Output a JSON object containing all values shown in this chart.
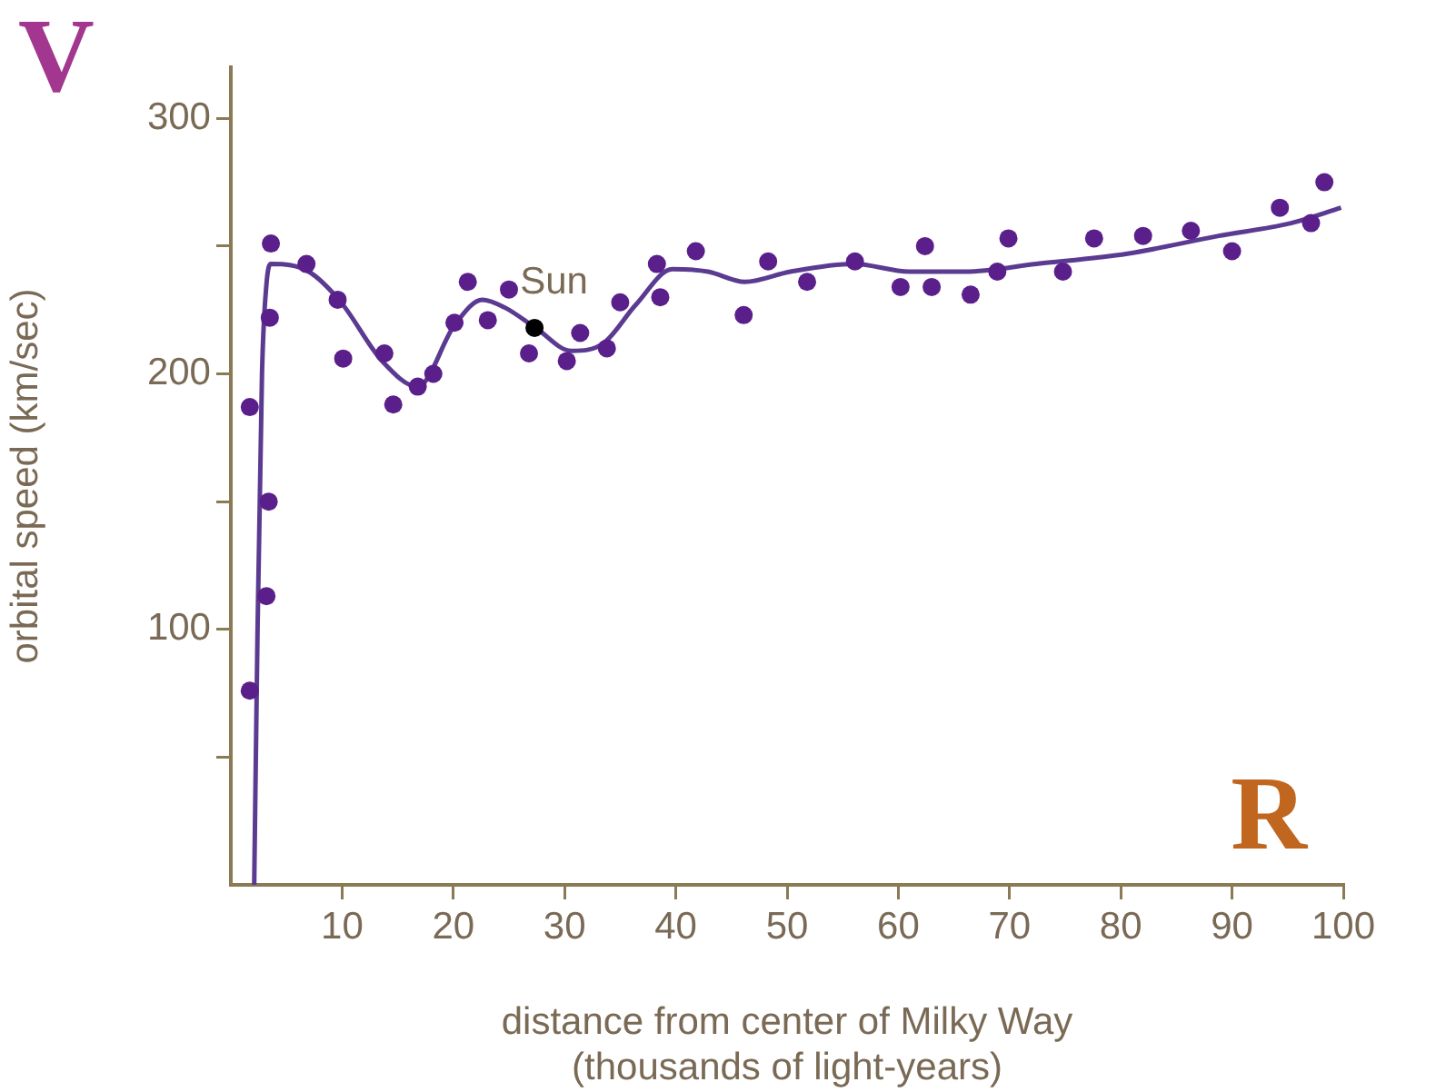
{
  "chart_data": {
    "type": "scatter",
    "xlabel": "distance from center of Milky Way\n(thousands of light-years)",
    "ylabel": "orbital speed (km/sec)",
    "xlim": [
      0,
      100
    ],
    "xticks": [
      10,
      20,
      30,
      40,
      50,
      60,
      70,
      80,
      90,
      100
    ],
    "ylim": [
      0,
      320
    ],
    "yticks": [
      {
        "value": 50,
        "label": null
      },
      100,
      {
        "value": 150,
        "label": null
      },
      200,
      {
        "value": 250,
        "label": null
      },
      300
    ],
    "grid": false,
    "legend": false,
    "marker": "circle",
    "annotations": [
      "V",
      "R"
    ],
    "series": [
      {
        "type": "line",
        "marker": "none",
        "color": "#5b3a91",
        "x": [
          2.1,
          2.4,
          2.8,
          3.2,
          3.6,
          7,
          9.9,
          13.6,
          16.8,
          20.1,
          22.6,
          24.6,
          27.4,
          30.6,
          33.5,
          36.4,
          39.7,
          42.9,
          46.2,
          50.3,
          56,
          61,
          66,
          72.4,
          80.6,
          88.8,
          95.3,
          99.8
        ],
        "values": [
          0,
          100,
          200,
          235,
          243,
          240,
          228,
          205,
          195,
          219,
          229,
          226,
          218,
          209,
          212,
          227,
          241,
          240,
          236,
          240,
          243,
          240,
          240,
          243,
          247,
          254,
          259,
          265
        ]
      },
      {
        "color": "#5a1f8a",
        "x": [
          1.7,
          1.7,
          3.2,
          3.4,
          3.5,
          3.6,
          6.8,
          9.6,
          10.1,
          13.8,
          14.6,
          16.8,
          18.2,
          20.1,
          21.3,
          23.1,
          25,
          26.8,
          30.2,
          31.4,
          33.8,
          35,
          38.3,
          38.6,
          41.8,
          46.1,
          48.3,
          51.8,
          56.1,
          60.2,
          62.4,
          63,
          66.5,
          68.9,
          69.9,
          74.8,
          77.6,
          82,
          86.3,
          90,
          94.3,
          97.1,
          98.3
        ],
        "values": [
          187,
          76,
          113,
          150,
          222,
          251,
          243,
          229,
          206,
          208,
          188,
          195,
          200,
          220,
          236,
          221,
          233,
          208,
          205,
          216,
          210,
          228,
          243,
          230,
          248,
          223,
          244,
          236,
          244,
          234,
          250,
          234,
          231,
          240,
          253,
          240,
          253,
          254,
          256,
          248,
          265,
          259,
          275
        ]
      },
      {
        "name": "Sun",
        "color": "#000000",
        "x": [
          27.3
        ],
        "values": [
          218
        ]
      }
    ]
  }
}
